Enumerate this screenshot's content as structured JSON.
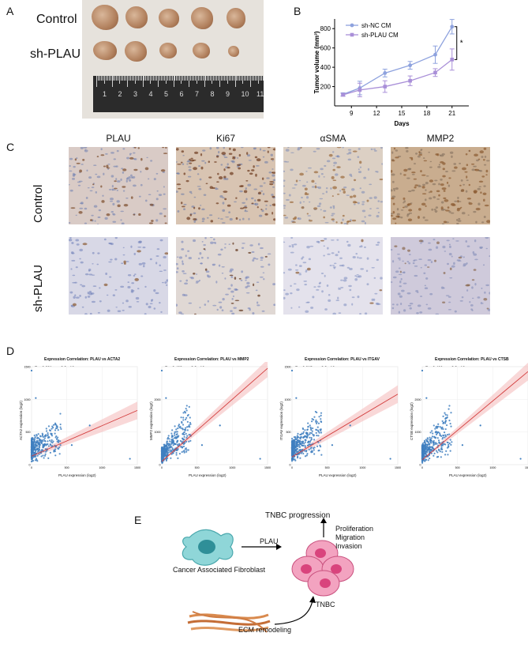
{
  "panels": {
    "A": {
      "letter": "A",
      "control_label": "Control",
      "sh_label": "sh-PLAU",
      "ruler_numbers": [
        "1",
        "2",
        "3",
        "4",
        "5",
        "6",
        "7",
        "8",
        "9",
        "10",
        "11"
      ]
    },
    "B": {
      "letter": "B"
    },
    "C": {
      "letter": "C",
      "columns": [
        "PLAU",
        "Ki67",
        "αSMA",
        "MMP2"
      ],
      "rows": [
        "Control",
        "sh-PLAU"
      ]
    },
    "D": {
      "letter": "D"
    },
    "E": {
      "letter": "E",
      "progression": "TNBC progression",
      "proliferation": "Proliferation",
      "migration": "Migration",
      "invasion": "Invasion",
      "plau_arrow": "PLAU",
      "caf": "Cancer Associated Fibroblast",
      "tnbc": "TNBC",
      "ecm": "ECM remodeling"
    }
  },
  "chart_data": [
    {
      "type": "line",
      "panel": "B",
      "xlabel": "Days",
      "ylabel": "Tumor volume (mm³)",
      "x": [
        8,
        10,
        13,
        16,
        19,
        21
      ],
      "xticks": [
        9,
        12,
        15,
        18,
        21
      ],
      "yticks": [
        200,
        400,
        600,
        800
      ],
      "xlim": [
        7,
        23
      ],
      "ylim": [
        0,
        900
      ],
      "legend_position": "top-left",
      "significance": "*",
      "series": [
        {
          "name": "sh-NC CM",
          "color": "#8ea2de",
          "values": [
            120,
            185,
            340,
            420,
            530,
            820
          ],
          "errors": [
            15,
            70,
            40,
            40,
            90,
            75
          ]
        },
        {
          "name": "sh-PLAU CM",
          "color": "#a98fd8",
          "values": [
            115,
            165,
            200,
            260,
            345,
            480
          ],
          "errors": [
            15,
            70,
            60,
            50,
            40,
            110
          ]
        }
      ]
    },
    {
      "type": "scatter",
      "panel": "D",
      "title": "Expression Correlation: PLAU vs ACTA2",
      "stat": "R = 0.331, p < 2.2e-16",
      "xlabel": "PLAU expression (log2)",
      "ylabel": "ACTA2 expression (log2)",
      "xticks": [
        "0",
        "500",
        "1000",
        "1500"
      ],
      "yticks": [
        "0",
        "500",
        "1000",
        "1500"
      ],
      "xlim": [
        0,
        1500
      ],
      "ylim": [
        0,
        1500
      ],
      "trend": [
        [
          0,
          130
        ],
        [
          1500,
          830
        ]
      ]
    },
    {
      "type": "scatter",
      "panel": "D",
      "title": "Expression Correlation: PLAU vs MMP2",
      "stat": "R = 0.463, p < 2.2e-16",
      "xlabel": "PLAU expression (log2)",
      "ylabel": "MMP2 expression (log2)",
      "xticks": [
        "0",
        "500",
        "1000",
        "1500"
      ],
      "yticks": [
        "0",
        "1000",
        "2000"
      ],
      "xlim": [
        0,
        1500
      ],
      "ylim": [
        0,
        3000
      ],
      "trend": [
        [
          0,
          100
        ],
        [
          1500,
          2950
        ]
      ]
    },
    {
      "type": "scatter",
      "panel": "D",
      "title": "Expression Correlation: PLAU vs ITGAV",
      "stat": "R = 0.315, p < 2.2e-16",
      "xlabel": "PLAU expression (log2)",
      "ylabel": "ITGAV expression (log2)",
      "xticks": [
        "0",
        "500",
        "1000",
        "1500"
      ],
      "yticks": [
        "0",
        "500",
        "1000",
        "1500"
      ],
      "xlim": [
        0,
        1500
      ],
      "ylim": [
        0,
        1500
      ],
      "trend": [
        [
          0,
          120
        ],
        [
          1500,
          1080
        ]
      ]
    },
    {
      "type": "scatter",
      "panel": "D",
      "title": "Expression Correlation: PLAU vs CTSB",
      "stat": "R = 0.466, p < 2.2e-16",
      "xlabel": "PLAU expression (log2)",
      "ylabel": "CTSB expression (log2)",
      "xticks": [
        "0",
        "500",
        "1000",
        "1500"
      ],
      "yticks": [
        "0",
        "1000",
        "2000"
      ],
      "xlim": [
        0,
        1500
      ],
      "ylim": [
        0,
        3000
      ],
      "trend": [
        [
          0,
          150
        ],
        [
          1500,
          2850
        ]
      ]
    }
  ]
}
